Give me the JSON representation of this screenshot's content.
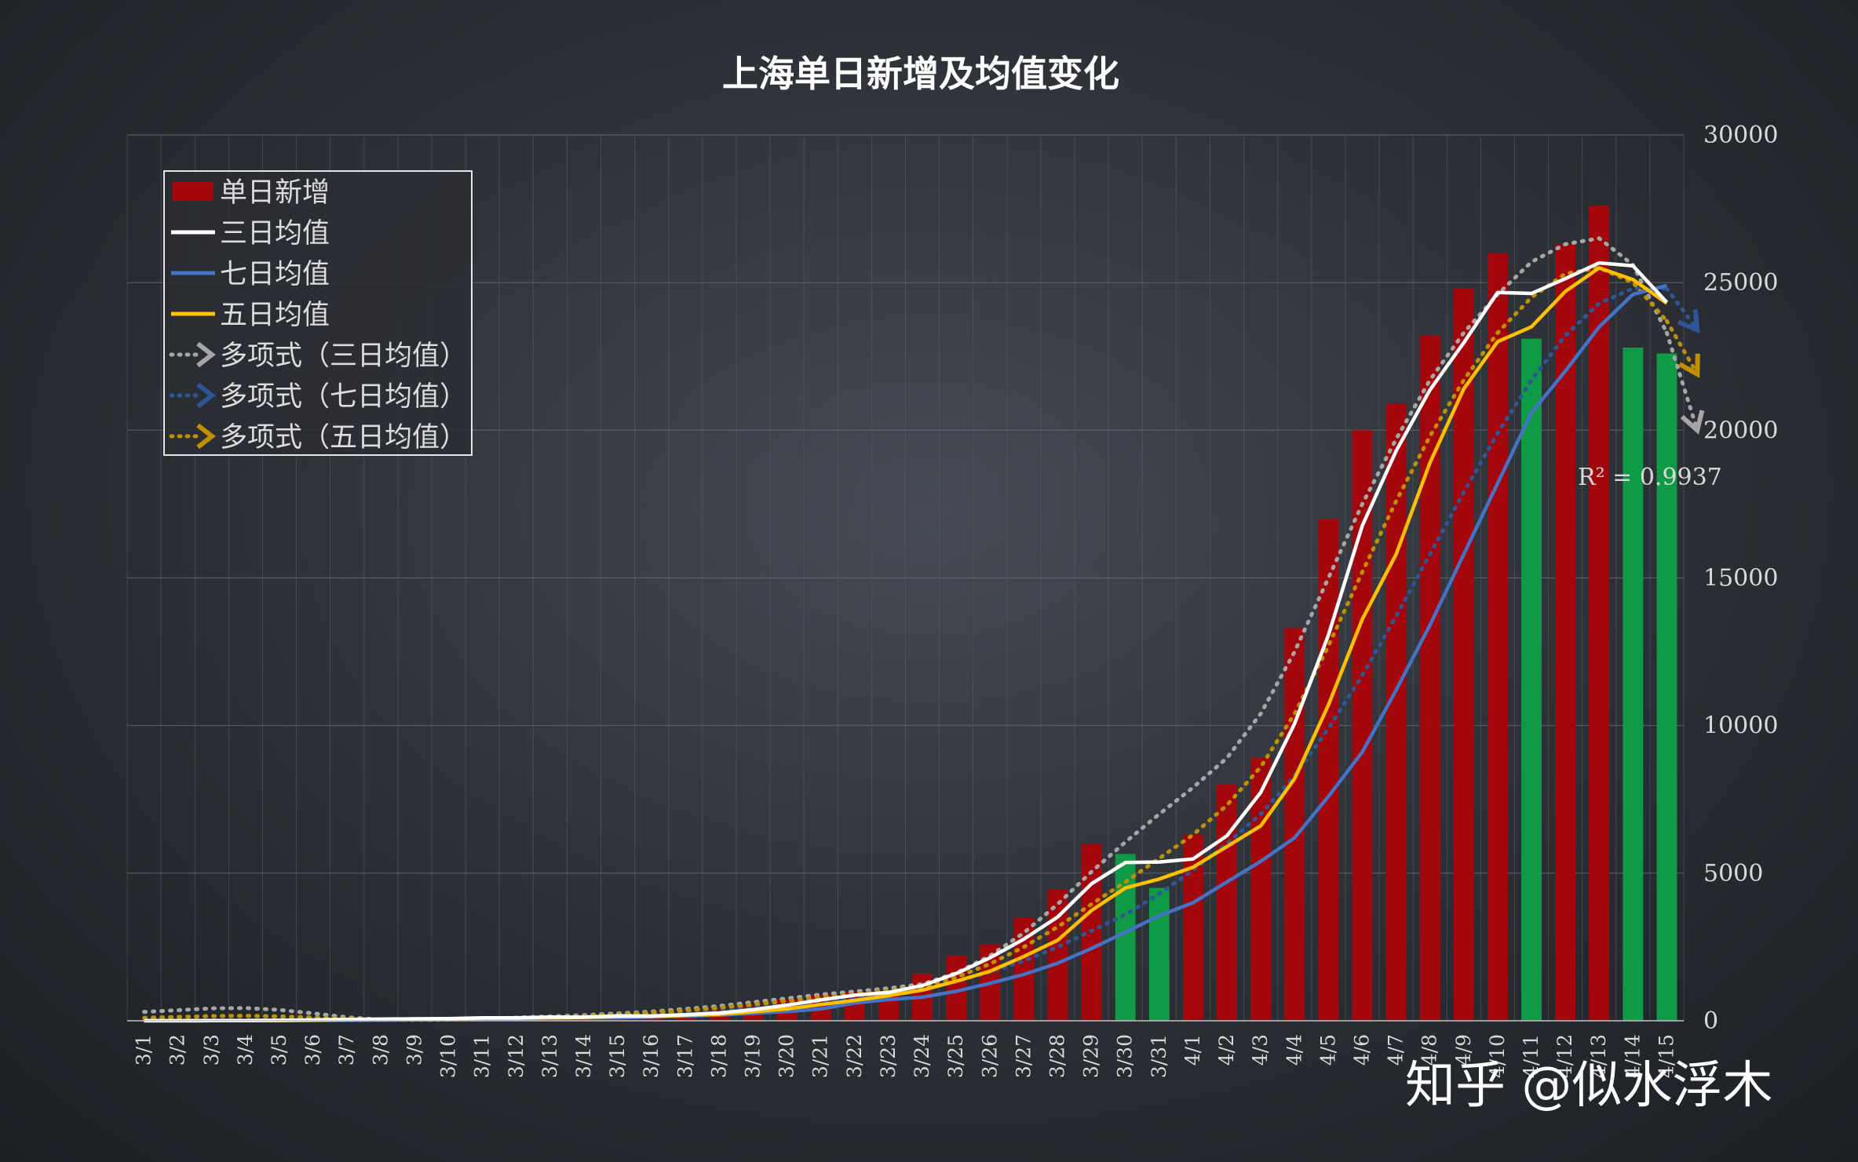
{
  "chart_data": {
    "type": "bar",
    "title": "上海单日新增及均值变化",
    "categories": [
      "3/1",
      "3/2",
      "3/3",
      "3/4",
      "3/5",
      "3/6",
      "3/7",
      "3/8",
      "3/9",
      "3/10",
      "3/11",
      "3/12",
      "3/13",
      "3/14",
      "3/15",
      "3/16",
      "3/17",
      "3/18",
      "3/19",
      "3/20",
      "3/21",
      "3/22",
      "3/23",
      "3/24",
      "3/25",
      "3/26",
      "3/27",
      "3/28",
      "3/29",
      "3/30",
      "3/31",
      "4/1",
      "4/2",
      "4/3",
      "4/4",
      "4/5",
      "4/6",
      "4/7",
      "4/8",
      "4/9",
      "4/10",
      "4/11",
      "4/12",
      "4/13",
      "4/14",
      "4/15"
    ],
    "ylim": [
      0,
      30000
    ],
    "yticks": [
      0,
      5000,
      10000,
      15000,
      20000,
      25000,
      30000
    ],
    "ytick_labels": [
      "0",
      "5000",
      "10000",
      "15000",
      "20000",
      "25000",
      "30000"
    ],
    "axis_position": "right",
    "grid": true,
    "legend_position": "top-left",
    "colors": {
      "bar_up": "#a3070c",
      "bar_down": "#0f9b46",
      "avg3": "#ffffff",
      "avg7": "#4472c4",
      "avg5": "#ffc000",
      "trend3": "#a6a6a6",
      "trend7": "#2f5597",
      "trend5": "#bf9000"
    },
    "bars": {
      "name": "单日新增",
      "values": [
        2,
        3,
        6,
        16,
        29,
        45,
        62,
        64,
        76,
        86,
        140,
        66,
        170,
        130,
        200,
        160,
        260,
        370,
        500,
        720,
        900,
        980,
        1000,
        1600,
        2200,
        2600,
        3500,
        4450,
        5980,
        5650,
        4500,
        6300,
        8000,
        8900,
        13300,
        17000,
        20000,
        20900,
        23200,
        24800,
        26000,
        23100,
        26300,
        27600,
        22800,
        22600
      ],
      "decreasing": [
        false,
        false,
        false,
        false,
        false,
        false,
        false,
        false,
        false,
        false,
        false,
        false,
        false,
        false,
        false,
        false,
        false,
        false,
        false,
        false,
        false,
        false,
        false,
        false,
        false,
        false,
        false,
        false,
        false,
        true,
        true,
        false,
        false,
        false,
        false,
        false,
        false,
        false,
        false,
        false,
        false,
        true,
        false,
        false,
        true,
        true
      ]
    },
    "series": [
      {
        "name": "三日均值",
        "values": [
          2,
          3,
          4,
          8,
          17,
          30,
          45,
          57,
          67,
          75,
          101,
          97,
          125,
          122,
          167,
          163,
          207,
          263,
          377,
          530,
          707,
          867,
          960,
          1193,
          1600,
          2133,
          2767,
          3517,
          4643,
          5360,
          5377,
          5483,
          6267,
          7733,
          10067,
          13067,
          16767,
          19300,
          21367,
          22967,
          24667,
          24633,
          25133,
          25667,
          25567,
          24333
        ]
      },
      {
        "name": "七日均值",
        "values": [
          2,
          3,
          4,
          6,
          9,
          12,
          16,
          25,
          37,
          50,
          58,
          77,
          82,
          94,
          102,
          126,
          158,
          190,
          253,
          310,
          400,
          600,
          720,
          800,
          1000,
          1270,
          1570,
          1950,
          2450,
          3000,
          3560,
          4000,
          4700,
          5400,
          6200,
          7600,
          9100,
          11200,
          13400,
          15800,
          18200,
          20600,
          22000,
          23500,
          24600,
          24900
        ]
      },
      {
        "name": "五日均值",
        "values": [
          2,
          3,
          4,
          7,
          11,
          20,
          32,
          43,
          55,
          67,
          86,
          86,
          104,
          118,
          141,
          145,
          184,
          222,
          306,
          400,
          550,
          690,
          850,
          1040,
          1340,
          1680,
          2180,
          2730,
          3740,
          4500,
          4800,
          5200,
          5900,
          6600,
          8200,
          10700,
          13600,
          15800,
          18900,
          21400,
          23000,
          23500,
          24700,
          25500,
          25100,
          24300
        ]
      },
      {
        "name": "多项式（三日均值）",
        "values": [
          300,
          360,
          420,
          430,
          370,
          250,
          120,
          40,
          30,
          40,
          70,
          110,
          150,
          190,
          250,
          310,
          400,
          500,
          630,
          760,
          890,
          990,
          1100,
          1240,
          1620,
          2200,
          2980,
          3950,
          5050,
          6050,
          7000,
          7900,
          8900,
          10400,
          12500,
          15000,
          17500,
          19700,
          21700,
          23300,
          24600,
          25700,
          26300,
          26500,
          25600,
          23300
        ]
      },
      {
        "name": "多项式（七日均值）",
        "values": [
          10,
          20,
          25,
          30,
          30,
          25,
          20,
          20,
          25,
          35,
          50,
          70,
          100,
          130,
          170,
          220,
          290,
          370,
          460,
          560,
          660,
          780,
          920,
          1090,
          1330,
          1650,
          2030,
          2500,
          3050,
          3600,
          4300,
          5100,
          6000,
          7000,
          8300,
          9900,
          11700,
          13700,
          15800,
          17900,
          19900,
          21700,
          23200,
          24300,
          24800,
          24800
        ]
      },
      {
        "name": "多项式（五日均值）",
        "values": [
          100,
          130,
          160,
          170,
          150,
          110,
          70,
          40,
          35,
          40,
          60,
          90,
          120,
          160,
          210,
          270,
          350,
          440,
          550,
          670,
          790,
          900,
          1010,
          1160,
          1470,
          1930,
          2500,
          3180,
          3950,
          4700,
          5500,
          6300,
          7300,
          8600,
          10400,
          12700,
          15200,
          17600,
          19800,
          21700,
          23300,
          24500,
          25300,
          25500,
          25000,
          23700
        ]
      }
    ],
    "trend_arrowheads": [
      {
        "name": "多项式（七日均值）",
        "value": 23400
      },
      {
        "name": "多项式（五日均值）",
        "value": 21900
      },
      {
        "name": "多项式（三日均值）",
        "value": 20000
      }
    ],
    "annotation": "R² = 0.9937"
  },
  "watermark": "知乎 @似水浮木"
}
